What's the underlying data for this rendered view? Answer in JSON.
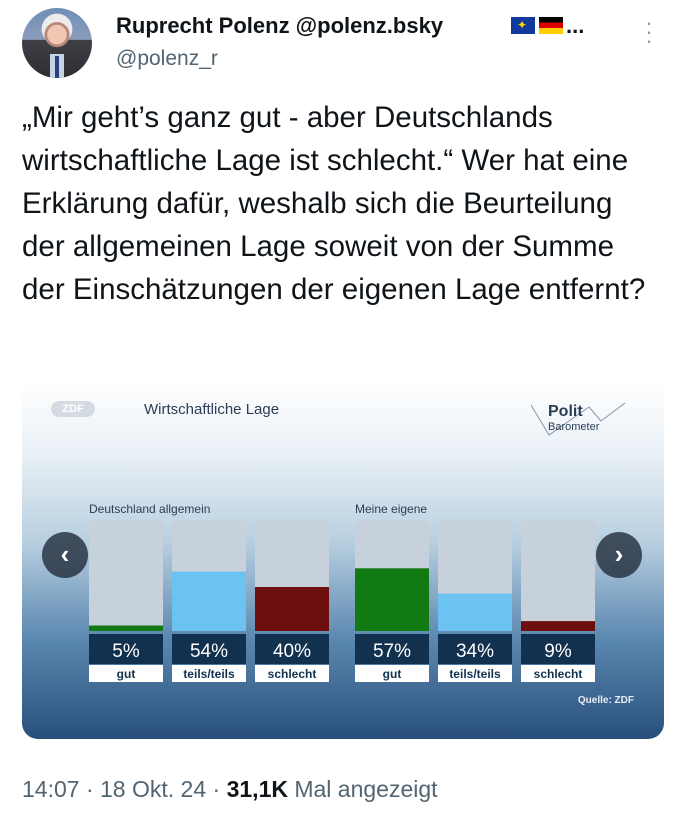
{
  "author": {
    "display_name": "Ruprecht Polenz @polenz.bsky",
    "ellipsis": "...",
    "handle": "@polenz_r",
    "flag_icons": [
      "eu-flag-icon",
      "germany-flag-icon"
    ]
  },
  "tweet": {
    "text": "„Mir geht’s ganz gut - aber Deutschlands wirtschaftliche Lage ist schlecht.“ Wer hat eine Erklärung dafür, weshalb sich die Beurteilung der allgemeinen Lage soweit von der Summe der Einschätzungen der eigenen Lage entfernt?"
  },
  "card": {
    "logo_text": "ZDF",
    "title": "Wirtschaftliche Lage",
    "brand_line1": "Polit",
    "brand_line2": "Barometer",
    "source": "Quelle: ZDF",
    "prev_icon": "chevron-left-icon",
    "next_icon": "chevron-right-icon"
  },
  "chart_data": {
    "type": "bar",
    "groups": [
      "Deutschland allgemein",
      "Meine eigene"
    ],
    "categories": [
      "gut",
      "teils/teils",
      "schlecht",
      "gut",
      "teils/teils",
      "schlecht"
    ],
    "values": [
      5,
      54,
      40,
      57,
      34,
      9
    ],
    "value_labels": [
      "5%",
      "54%",
      "40%",
      "57%",
      "34%",
      "9%"
    ],
    "colors": [
      "#127a12",
      "#6cc3f2",
      "#6e0f0f",
      "#127a12",
      "#6cc3f2",
      "#6e0f0f"
    ],
    "ylim": [
      0,
      100
    ]
  },
  "meta": {
    "time": "14:07",
    "sep1": " · ",
    "date": "18 Okt. 24",
    "sep2": " · ",
    "views": "31,1K",
    "views_label": " Mal angezeigt"
  }
}
